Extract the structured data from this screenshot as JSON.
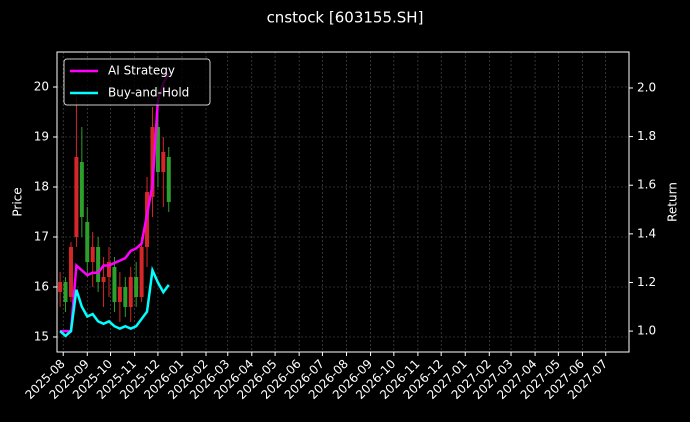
{
  "chart_data": {
    "type": "candlestick",
    "title": "cnstock [603155.SH]",
    "ylabel": "Price",
    "y2label": "Return",
    "x": [
      "2025-07-28",
      "2025-08-04",
      "2025-08-11",
      "2025-08-18",
      "2025-08-25",
      "2025-09-01",
      "2025-09-08",
      "2025-09-15",
      "2025-09-22",
      "2025-09-29",
      "2025-10-06",
      "2025-10-13",
      "2025-10-20",
      "2025-10-27",
      "2025-11-03",
      "2025-11-10",
      "2025-11-17",
      "2025-11-24",
      "2025-12-01",
      "2025-12-08",
      "2025-12-15"
    ],
    "open": [
      15.9,
      16.1,
      15.8,
      17.0,
      18.5,
      17.3,
      16.5,
      16.8,
      16.1,
      16.2,
      16.4,
      15.7,
      16.0,
      15.6,
      16.2,
      15.8,
      16.8,
      17.8,
      19.2,
      18.3,
      18.6
    ],
    "high": [
      16.3,
      16.2,
      16.9,
      19.8,
      19.2,
      17.6,
      17.1,
      17.0,
      16.6,
      16.8,
      16.6,
      16.3,
      16.2,
      16.4,
      16.5,
      17.0,
      18.2,
      19.6,
      20.0,
      19.0,
      18.8
    ],
    "low": [
      15.6,
      15.5,
      15.7,
      16.8,
      17.0,
      16.2,
      16.0,
      15.9,
      15.6,
      15.8,
      15.5,
      15.3,
      15.4,
      15.3,
      15.6,
      15.7,
      16.4,
      17.4,
      18.0,
      17.6,
      17.5
    ],
    "close": [
      16.1,
      15.7,
      16.8,
      18.6,
      17.4,
      16.5,
      16.8,
      16.1,
      16.2,
      16.5,
      15.7,
      16.0,
      15.6,
      16.2,
      15.8,
      16.8,
      17.9,
      19.2,
      18.3,
      18.7,
      17.7
    ],
    "up_color": "#d62728",
    "down_color": "#2ca02c",
    "series": [
      {
        "name": "AI Strategy",
        "color": "#ff00ff",
        "axis": "y2",
        "values": [
          1.0,
          1.0,
          1.0,
          1.27,
          1.25,
          1.23,
          1.24,
          1.24,
          1.27,
          1.27,
          1.28,
          1.29,
          1.3,
          1.33,
          1.34,
          1.36,
          1.48,
          1.6,
          1.95,
          2.02,
          2.06
        ]
      },
      {
        "name": "Buy-and-Hold",
        "color": "#00ffff",
        "axis": "y2",
        "values": [
          1.0,
          0.98,
          1.0,
          1.17,
          1.1,
          1.06,
          1.07,
          1.04,
          1.03,
          1.04,
          1.02,
          1.01,
          1.02,
          1.01,
          1.02,
          1.05,
          1.08,
          1.25,
          1.2,
          1.16,
          1.19
        ]
      }
    ],
    "xlim": [
      "2025-07-24",
      "2027-07-31"
    ],
    "xticks": [
      "2025-08",
      "2025-09",
      "2025-10",
      "2025-11",
      "2025-12",
      "2026-01",
      "2026-02",
      "2026-03",
      "2026-04",
      "2026-05",
      "2026-06",
      "2026-07",
      "2026-08",
      "2026-09",
      "2026-10",
      "2026-11",
      "2026-12",
      "2027-01",
      "2027-02",
      "2027-03",
      "2027-04",
      "2027-05",
      "2027-06",
      "2027-07"
    ],
    "ylim": [
      14.7,
      20.7
    ],
    "yticks": [
      15,
      16,
      17,
      18,
      19,
      20
    ],
    "y2lim": [
      0.914,
      2.148
    ],
    "y2ticks": [
      {
        "value": 1.0,
        "label": "1.0"
      },
      {
        "value": 1.2,
        "label": "1.2"
      },
      {
        "value": 1.4,
        "label": "1.4"
      },
      {
        "value": 1.6,
        "label": "1.6"
      },
      {
        "value": 1.8,
        "label": "1.8"
      },
      {
        "value": 2.0,
        "label": "2.0"
      }
    ],
    "grid": true,
    "legend": "upper left"
  }
}
